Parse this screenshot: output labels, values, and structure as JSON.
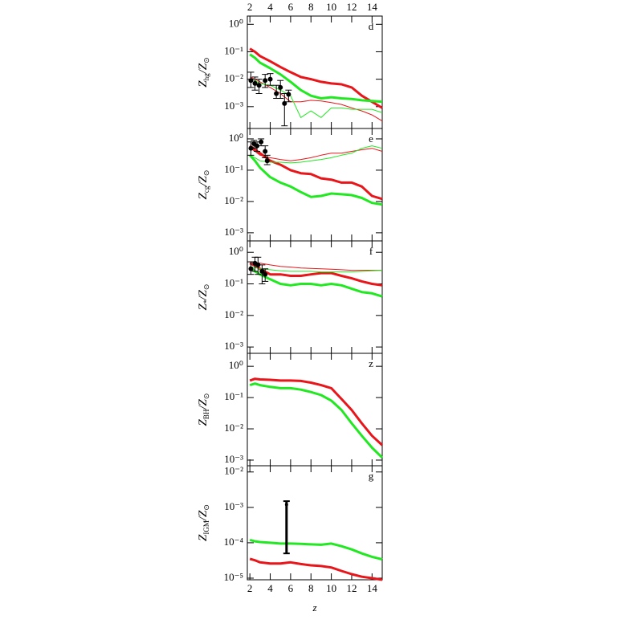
{
  "chart_data": [
    {
      "type": "line",
      "panel_label": "d",
      "ylabel": [
        "Z",
        "hg",
        "/Z",
        "⊙"
      ],
      "yscale": "log",
      "xlim": [
        1.75,
        15
      ],
      "xticks": [
        2,
        4,
        6,
        8,
        10,
        12,
        14
      ],
      "xtick_labels": "top",
      "ylim": [
        0.00016,
        2
      ],
      "yticks": [
        {
          "value": 1,
          "label": "10⁰"
        },
        {
          "value": 0.1,
          "label": "10⁻¹"
        },
        {
          "value": 0.01,
          "label": "10⁻²"
        },
        {
          "value": 0.001,
          "label": "10⁻³"
        }
      ],
      "x": [
        2,
        2.5,
        3,
        4,
        5,
        6,
        7,
        8,
        9,
        10,
        11,
        12,
        13,
        14,
        15
      ],
      "series": [
        {
          "color": "#e8161a",
          "linewidth": 3,
          "values": [
            0.13,
            0.1,
            0.07,
            0.045,
            0.028,
            0.018,
            0.012,
            0.01,
            0.008,
            0.007,
            0.0065,
            0.005,
            0.0025,
            0.0015,
            0.0009
          ]
        },
        {
          "color": "#22e822",
          "linewidth": 3,
          "values": [
            0.08,
            0.06,
            0.04,
            0.025,
            0.015,
            0.008,
            0.004,
            0.0025,
            0.002,
            0.0022,
            0.002,
            0.0019,
            0.0017,
            0.0016,
            0.0015
          ]
        },
        {
          "color": "#e8161a",
          "linewidth": 1,
          "values": [
            0.012,
            0.01,
            0.008,
            0.005,
            0.003,
            0.0015,
            0.0015,
            0.0017,
            0.0016,
            0.0014,
            0.0012,
            0.0009,
            0.0007,
            0.0005,
            0.0003
          ]
        },
        {
          "color": "#22e822",
          "linewidth": 1,
          "values": [
            0.01,
            0.009,
            0.007,
            0.006,
            0.004,
            0.0025,
            0.0004,
            0.0007,
            0.0004,
            0.0009,
            0.0009,
            0.0008,
            0.0008,
            0.0008,
            0.0006
          ]
        }
      ],
      "points": {
        "x": [
          2.1,
          2.5,
          2.9,
          3.5,
          4,
          4.6,
          5,
          5.4,
          5.8
        ],
        "y": [
          0.009,
          0.007,
          0.006,
          0.009,
          0.01,
          0.003,
          0.005,
          0.0013,
          0.0028
        ],
        "ylow": [
          0.005,
          0.004,
          0.003,
          0.005,
          0.006,
          0.002,
          0.002,
          0.0002,
          0.0015
        ],
        "yhigh": [
          0.018,
          0.012,
          0.01,
          0.015,
          0.016,
          0.006,
          0.009,
          0.003,
          0.004
        ]
      }
    },
    {
      "type": "line",
      "panel_label": "e",
      "ylabel": [
        "Z",
        "cg",
        "/Z",
        "⊙"
      ],
      "yscale": "log",
      "xlim": [
        1.75,
        15
      ],
      "xticks": [
        2,
        4,
        6,
        8,
        10,
        12,
        14
      ],
      "xtick_labels": "none",
      "ylim": [
        0.00055,
        2.15
      ],
      "yticks": [
        {
          "value": 1,
          "label": "10⁰"
        },
        {
          "value": 0.1,
          "label": "10⁻¹"
        },
        {
          "value": 0.01,
          "label": "10⁻²"
        },
        {
          "value": 0.001,
          "label": "10⁻³"
        }
      ],
      "x": [
        2,
        2.5,
        3,
        4,
        5,
        6,
        7,
        8,
        9,
        10,
        11,
        12,
        13,
        14,
        15
      ],
      "series": [
        {
          "color": "#e8161a",
          "linewidth": 3,
          "values": [
            0.6,
            0.45,
            0.35,
            0.2,
            0.15,
            0.1,
            0.08,
            0.075,
            0.055,
            0.05,
            0.04,
            0.04,
            0.03,
            0.015,
            0.012
          ]
        },
        {
          "color": "#22e822",
          "linewidth": 3,
          "values": [
            0.3,
            0.2,
            0.12,
            0.06,
            0.04,
            0.03,
            0.02,
            0.014,
            0.015,
            0.018,
            0.017,
            0.016,
            0.013,
            0.009,
            0.008
          ]
        },
        {
          "color": "#e8161a",
          "linewidth": 1,
          "values": [
            0.5,
            0.4,
            0.3,
            0.25,
            0.22,
            0.2,
            0.22,
            0.25,
            0.3,
            0.35,
            0.35,
            0.4,
            0.45,
            0.5,
            0.4
          ]
        },
        {
          "color": "#22e822",
          "linewidth": 1,
          "values": [
            0.3,
            0.25,
            0.2,
            0.18,
            0.18,
            0.17,
            0.18,
            0.2,
            0.22,
            0.25,
            0.3,
            0.35,
            0.5,
            0.6,
            0.5
          ]
        }
      ],
      "points": {
        "x": [
          2.1,
          2.4,
          2.7,
          3.1,
          3.5,
          3.7
        ],
        "y": [
          0.5,
          0.7,
          0.6,
          0.8,
          0.4,
          0.2
        ],
        "ylow": [
          0.3,
          0.5,
          0.4,
          0.6,
          0.25,
          0.15
        ],
        "yhigh": [
          0.8,
          0.9,
          0.8,
          1,
          0.6,
          0.3
        ]
      }
    },
    {
      "type": "line",
      "panel_label": "f",
      "ylabel": [
        "Z",
        "*",
        "/Z",
        "⊙"
      ],
      "yscale": "log",
      "xlim": [
        1.75,
        15
      ],
      "xticks": [
        2,
        4,
        6,
        8,
        10,
        12,
        14
      ],
      "xtick_labels": "none",
      "ylim": [
        0.00063,
        2.3
      ],
      "yticks": [
        {
          "value": 1,
          "label": "10⁰"
        },
        {
          "value": 0.1,
          "label": "10⁻¹"
        },
        {
          "value": 0.01,
          "label": "10⁻²"
        },
        {
          "value": 0.001,
          "label": "10⁻³"
        }
      ],
      "x": [
        2,
        2.5,
        3,
        4,
        5,
        6,
        7,
        8,
        9,
        10,
        11,
        12,
        13,
        14,
        15
      ],
      "series": [
        {
          "color": "#e8161a",
          "linewidth": 3,
          "values": [
            0.45,
            0.38,
            0.3,
            0.2,
            0.2,
            0.18,
            0.18,
            0.2,
            0.22,
            0.22,
            0.18,
            0.15,
            0.12,
            0.1,
            0.09
          ]
        },
        {
          "color": "#22e822",
          "linewidth": 3,
          "values": [
            0.35,
            0.25,
            0.2,
            0.14,
            0.1,
            0.09,
            0.1,
            0.1,
            0.09,
            0.1,
            0.09,
            0.07,
            0.055,
            0.05,
            0.04
          ]
        },
        {
          "color": "#e8161a",
          "linewidth": 1,
          "values": [
            0.5,
            0.48,
            0.45,
            0.4,
            0.36,
            0.34,
            0.32,
            0.31,
            0.3,
            0.29,
            0.28,
            0.27,
            0.27,
            0.27,
            0.27
          ]
        },
        {
          "color": "#22e822",
          "linewidth": 1,
          "values": [
            0.35,
            0.33,
            0.3,
            0.28,
            0.26,
            0.25,
            0.25,
            0.25,
            0.24,
            0.24,
            0.24,
            0.24,
            0.25,
            0.26,
            0.27
          ]
        }
      ],
      "points": {
        "x": [
          2.1,
          2.5,
          2.8,
          3.2,
          3.5
        ],
        "y": [
          0.3,
          0.45,
          0.4,
          0.25,
          0.2
        ],
        "ylow": [
          0.2,
          0.25,
          0.2,
          0.1,
          0.12
        ],
        "yhigh": [
          0.5,
          0.7,
          0.7,
          0.4,
          0.3
        ]
      }
    },
    {
      "type": "line",
      "panel_label": "z",
      "ylabel": [
        "Z",
        "BH",
        "/Z",
        "⊙"
      ],
      "yscale": "log",
      "xlim": [
        1.75,
        15
      ],
      "xticks": [
        2,
        4,
        6,
        8,
        10,
        12,
        14
      ],
      "xtick_labels": "none",
      "ylim": [
        0.00066,
        2.6
      ],
      "yticks": [
        {
          "value": 1,
          "label": "10⁰"
        },
        {
          "value": 0.1,
          "label": "10⁻¹"
        },
        {
          "value": 0.01,
          "label": "10⁻²"
        },
        {
          "value": 0.001,
          "label": "10⁻³"
        }
      ],
      "x": [
        2,
        2.5,
        3,
        4,
        5,
        6,
        7,
        8,
        9,
        10,
        11,
        12,
        13,
        14,
        15
      ],
      "series": [
        {
          "color": "#e8161a",
          "linewidth": 3,
          "values": [
            0.35,
            0.4,
            0.38,
            0.37,
            0.35,
            0.35,
            0.34,
            0.3,
            0.25,
            0.2,
            0.09,
            0.04,
            0.015,
            0.006,
            0.003
          ]
        },
        {
          "color": "#22e822",
          "linewidth": 3,
          "values": [
            0.25,
            0.28,
            0.25,
            0.22,
            0.2,
            0.2,
            0.18,
            0.15,
            0.12,
            0.08,
            0.04,
            0.015,
            0.006,
            0.0025,
            0.0012
          ]
        }
      ]
    },
    {
      "type": "line",
      "panel_label": "g",
      "ylabel": [
        "Z",
        "IGM",
        "/Z",
        "⊙"
      ],
      "yscale": "log",
      "xlabel": "z",
      "xlim": [
        1.75,
        15
      ],
      "xticks": [
        2,
        4,
        6,
        8,
        10,
        12,
        14
      ],
      "xtick_labels": "bottom",
      "ylim": [
        9e-06,
        0.015
      ],
      "yticks": [
        {
          "value": 0.01,
          "label": "10⁻²"
        },
        {
          "value": 0.001,
          "label": "10⁻³"
        },
        {
          "value": 0.0001,
          "label": "10⁻⁴"
        },
        {
          "value": 1e-05,
          "label": "10⁻⁵"
        }
      ],
      "x": [
        2,
        2.5,
        3,
        4,
        5,
        6,
        7,
        8,
        9,
        10,
        11,
        12,
        13,
        14,
        15
      ],
      "series": [
        {
          "color": "#e8161a",
          "linewidth": 3,
          "values": [
            3.5e-05,
            3.2e-05,
            2.8e-05,
            2.6e-05,
            2.6e-05,
            2.8e-05,
            2.5e-05,
            2.3e-05,
            2.2e-05,
            2e-05,
            1.6e-05,
            1.3e-05,
            1.1e-05,
            1e-05,
            9e-06
          ]
        },
        {
          "color": "#22e822",
          "linewidth": 3,
          "values": [
            0.00012,
            0.00011,
            0.000105,
            0.0001,
            9.5e-05,
            9.5e-05,
            9.3e-05,
            9e-05,
            8.8e-05,
            9.5e-05,
            8e-05,
            6.5e-05,
            5e-05,
            4e-05,
            3.4e-05
          ]
        }
      ],
      "points": {
        "x": [
          5.6
        ],
        "y": [
          0.0012
        ],
        "ylow": [
          5e-05
        ],
        "yhigh": [
          0.0015
        ]
      }
    }
  ]
}
